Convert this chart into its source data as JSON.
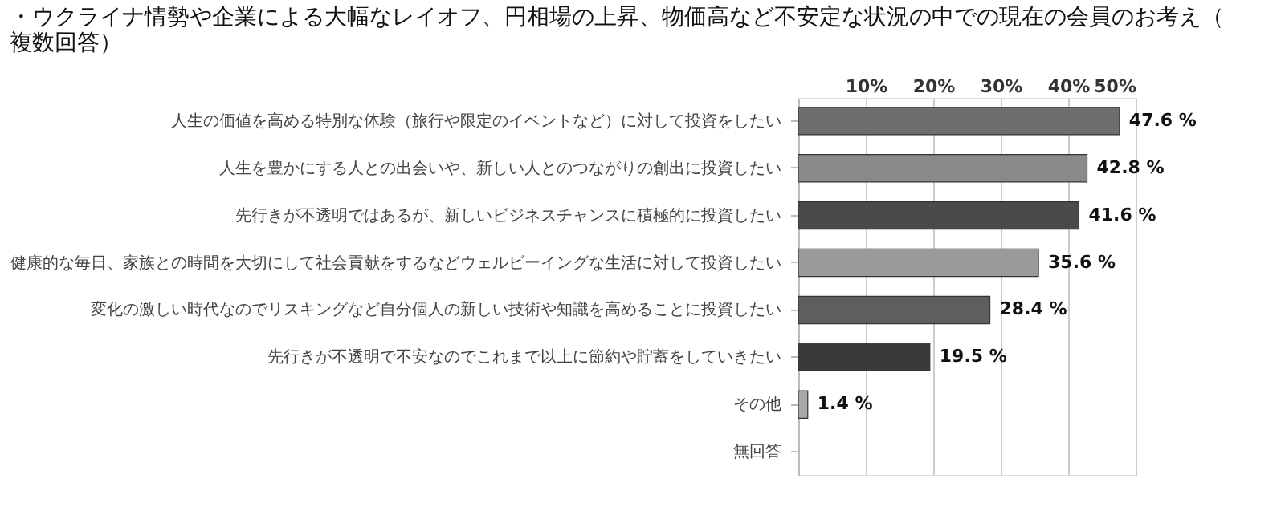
{
  "chart_data": {
    "type": "bar",
    "orientation": "horizontal",
    "title": "・ウクライナ情勢や企業による大幅なレイオフ、円相場の上昇、物価高など不安定な状況の中での現在の会員のお考え（複数回答）",
    "categories": [
      "人生の価値を高める特別な体験（旅行や限定のイベントなど）に対して投資をしたい",
      "人生を豊かにする人との出会いや、新しい人とのつながりの創出に投資したい",
      "先行きが不透明ではあるが、新しいビジネスチャンスに積極的に投資したい",
      "健康的な毎日、家族との時間を大切にして社会貢献をするなどウェルビーイングな生活に対して投資したい",
      "変化の激しい時代なのでリスキングなど自分個人の新しい技術や知識を高めることに投資したい",
      "先行きが不透明で不安なのでこれまで以上に節約や貯蓄をしていきたい",
      "その他",
      "無回答"
    ],
    "values": [
      47.6,
      42.8,
      41.6,
      35.6,
      28.4,
      19.5,
      1.4,
      null
    ],
    "value_labels": [
      "47.6 %",
      "42.8 %",
      "41.6 %",
      "35.6 %",
      "28.4 %",
      "19.5 %",
      "1.4 %",
      null
    ],
    "colors": [
      "#6e6e6e",
      "#8a8a8a",
      "#4a4a4a",
      "#9a9a9a",
      "#5e5e5e",
      "#3a3a3a",
      "#a8a8a8",
      null
    ],
    "xlim": [
      0,
      50
    ],
    "xticks": [
      {
        "value": 10,
        "label": "10%"
      },
      {
        "value": 20,
        "label": "20%"
      },
      {
        "value": 30,
        "label": "30%"
      },
      {
        "value": 40,
        "label": "40%"
      },
      {
        "value": 50,
        "label": "50%"
      }
    ],
    "grid": "x",
    "legend": false
  }
}
